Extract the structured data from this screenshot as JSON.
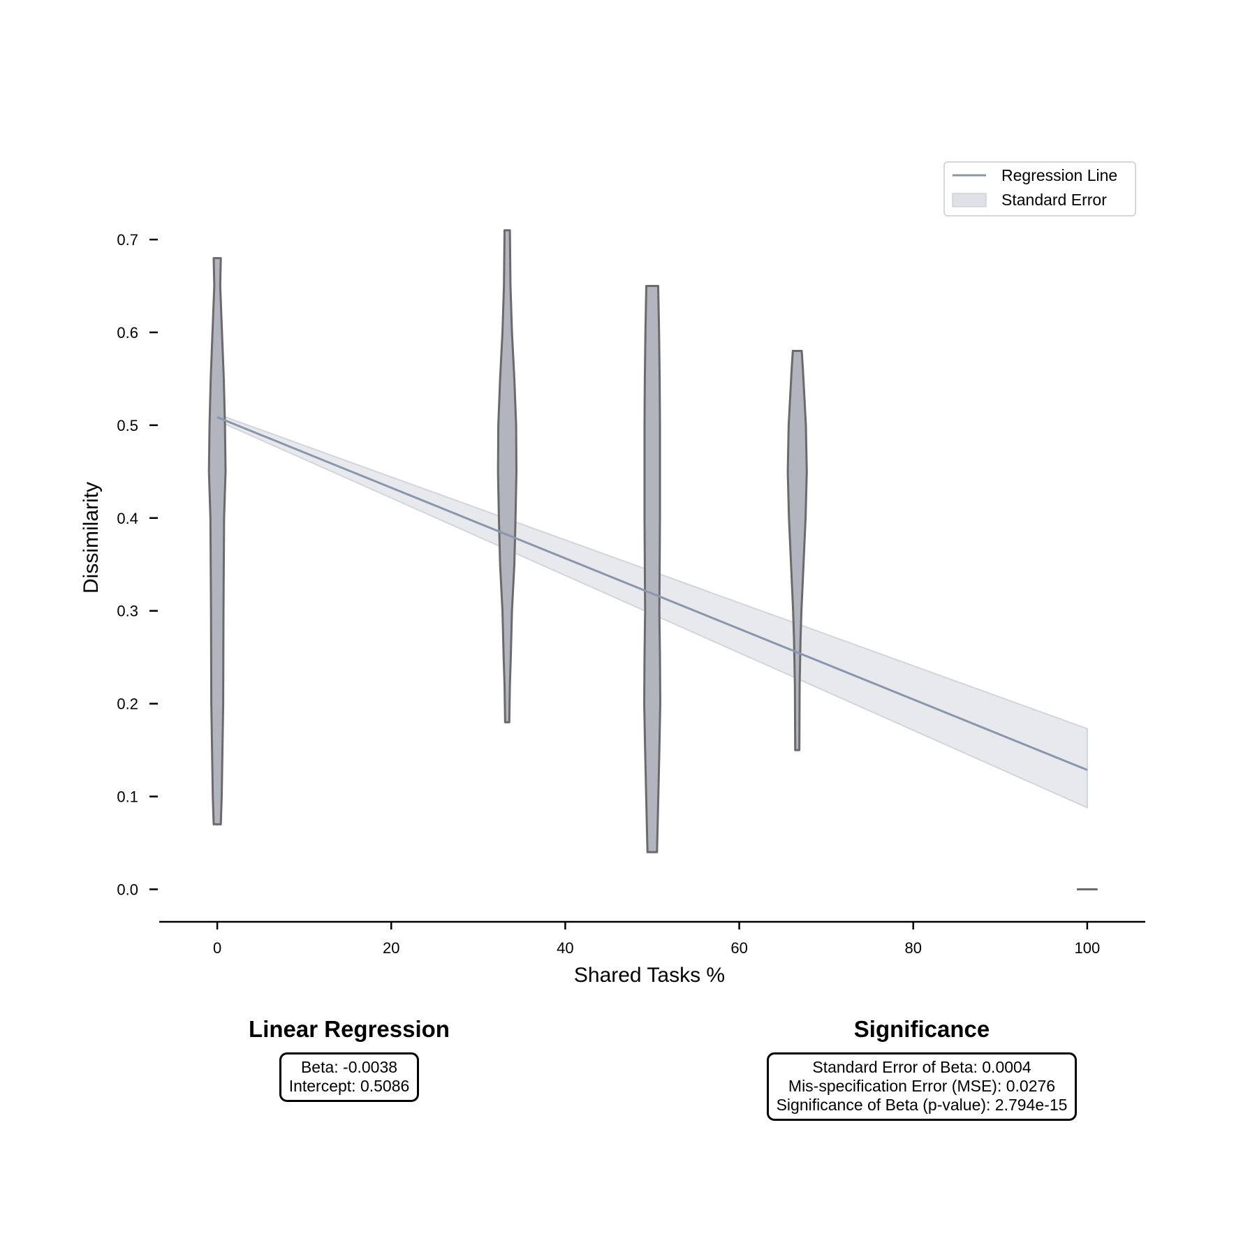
{
  "chart_data": {
    "type": "violin",
    "xlabel": "Shared Tasks %",
    "ylabel": "Dissimilarity",
    "xlim": [
      -6.67,
      106.67
    ],
    "ylim": [
      -0.035,
      0.77
    ],
    "xticks": [
      0,
      20,
      40,
      60,
      80,
      100
    ],
    "yticks": [
      0.0,
      0.1,
      0.2,
      0.3,
      0.4,
      0.5,
      0.6,
      0.7
    ],
    "ytick_labels": [
      "0.0",
      "0.1",
      "0.2",
      "0.3",
      "0.4",
      "0.5",
      "0.6",
      "0.7"
    ],
    "grid": false,
    "legend_position": "top-right",
    "violins": [
      {
        "x": 0,
        "ymin": 0.07,
        "ymax": 0.68,
        "profile": [
          [
            0.07,
            0.6
          ],
          [
            0.1,
            0.75
          ],
          [
            0.2,
            1.0
          ],
          [
            0.3,
            1.05
          ],
          [
            0.4,
            1.15
          ],
          [
            0.45,
            1.4
          ],
          [
            0.5,
            1.3
          ],
          [
            0.55,
            1.1
          ],
          [
            0.6,
            0.8
          ],
          [
            0.65,
            0.5
          ],
          [
            0.68,
            0.6
          ]
        ]
      },
      {
        "x": 33.33,
        "ymin": 0.18,
        "ymax": 0.71,
        "profile": [
          [
            0.18,
            0.35
          ],
          [
            0.22,
            0.45
          ],
          [
            0.25,
            0.6
          ],
          [
            0.3,
            0.8
          ],
          [
            0.35,
            1.2
          ],
          [
            0.4,
            1.4
          ],
          [
            0.45,
            1.55
          ],
          [
            0.5,
            1.5
          ],
          [
            0.55,
            1.2
          ],
          [
            0.6,
            0.8
          ],
          [
            0.65,
            0.55
          ],
          [
            0.71,
            0.45
          ]
        ]
      },
      {
        "x": 50,
        "ymin": 0.04,
        "ymax": 0.65,
        "profile": [
          [
            0.04,
            0.8
          ],
          [
            0.08,
            0.95
          ],
          [
            0.15,
            1.2
          ],
          [
            0.2,
            1.35
          ],
          [
            0.25,
            1.3
          ],
          [
            0.3,
            1.2
          ],
          [
            0.35,
            1.25
          ],
          [
            0.4,
            1.3
          ],
          [
            0.45,
            1.3
          ],
          [
            0.5,
            1.3
          ],
          [
            0.55,
            1.25
          ],
          [
            0.6,
            1.15
          ],
          [
            0.65,
            1.0
          ]
        ]
      },
      {
        "x": 66.67,
        "ymin": 0.15,
        "ymax": 0.58,
        "profile": [
          [
            0.15,
            0.35
          ],
          [
            0.22,
            0.4
          ],
          [
            0.27,
            0.55
          ],
          [
            0.3,
            0.7
          ],
          [
            0.35,
            1.05
          ],
          [
            0.4,
            1.4
          ],
          [
            0.45,
            1.6
          ],
          [
            0.5,
            1.45
          ],
          [
            0.53,
            1.2
          ],
          [
            0.56,
            0.95
          ],
          [
            0.58,
            0.75
          ]
        ]
      },
      {
        "x": 100,
        "ymin": 0.0,
        "ymax": 0.0,
        "profile": [
          [
            0.0,
            0.8
          ]
        ]
      }
    ],
    "regression": {
      "x": [
        0,
        100
      ],
      "y": [
        0.5086,
        0.1286
      ],
      "se_lower": [
        0.505,
        0.088
      ],
      "se_upper": [
        0.512,
        0.173
      ]
    },
    "legend": [
      {
        "label": "Regression Line",
        "kind": "line"
      },
      {
        "label": "Standard Error",
        "kind": "patch"
      }
    ],
    "colors": {
      "violin_fill": "#b2b5bd",
      "violin_edge": "#6a6a6a",
      "regression": "#8a96ab",
      "se_fill": "#dfe1e7"
    }
  },
  "panels": {
    "linear_regression": {
      "title": "Linear Regression",
      "lines": [
        "Beta: -0.0038",
        "Intercept: 0.5086"
      ]
    },
    "significance": {
      "title": "Significance",
      "lines": [
        "Standard Error of Beta: 0.0004",
        "Mis-specification Error (MSE): 0.0276",
        "Significance of Beta (p-value): 2.794e-15"
      ]
    }
  }
}
